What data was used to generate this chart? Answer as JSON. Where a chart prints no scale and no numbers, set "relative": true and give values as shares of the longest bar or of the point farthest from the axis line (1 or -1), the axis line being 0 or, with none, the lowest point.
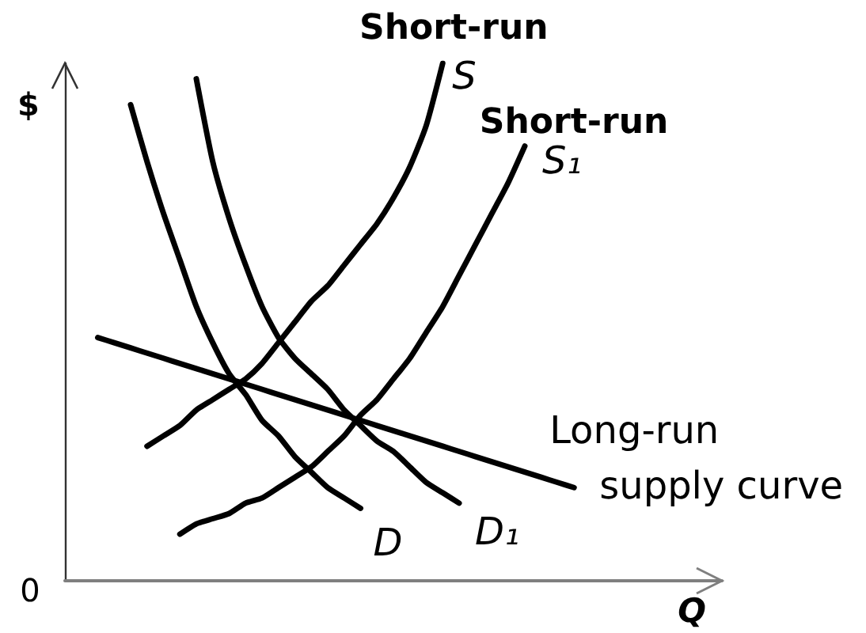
{
  "chart_data": {
    "type": "line",
    "xlabel": "Q",
    "ylabel": "$",
    "relative": true,
    "legend": false,
    "annotations": [
      "0"
    ],
    "categories": [
      null,
      null,
      null,
      null,
      null,
      null,
      null,
      null,
      null,
      null,
      null,
      null,
      null,
      null,
      null,
      null,
      null,
      null,
      null,
      null,
      null,
      null,
      null,
      null,
      null,
      null,
      null,
      null,
      null,
      null,
      null,
      null,
      null,
      null,
      null,
      null,
      null,
      null,
      null,
      null,
      null
    ],
    "series": [
      {
        "name": "D",
        "color": "#000000",
        "values": [
          null,
          null,
          null,
          null,
          0.92,
          0.81,
          0.71,
          0.62,
          0.53,
          0.46,
          0.4,
          0.36,
          0.31,
          0.28,
          0.24,
          0.21,
          0.18,
          0.16,
          0.14,
          null,
          null,
          null,
          null,
          null,
          null,
          null,
          null,
          null,
          null,
          null,
          null,
          null,
          null,
          null,
          null,
          null,
          null,
          null,
          null,
          null,
          null
        ]
      },
      {
        "name": "D₁",
        "color": "#000000",
        "values": [
          null,
          null,
          null,
          null,
          null,
          null,
          null,
          null,
          0.97,
          0.81,
          0.7,
          0.61,
          0.53,
          0.47,
          0.43,
          0.4,
          0.37,
          0.33,
          0.3,
          0.27,
          0.25,
          0.22,
          0.19,
          0.17,
          0.15,
          null,
          null,
          null,
          null,
          null,
          null,
          null,
          null,
          null,
          null,
          null,
          null,
          null,
          null,
          null,
          null
        ]
      },
      {
        "name": "Short-run\nS",
        "color": "#000000",
        "values": [
          null,
          null,
          null,
          null,
          null,
          0.26,
          0.28,
          0.3,
          0.33,
          0.35,
          0.37,
          0.39,
          0.42,
          0.46,
          0.5,
          0.54,
          0.57,
          0.61,
          0.65,
          0.69,
          0.74,
          0.8,
          0.88,
          1,
          null,
          null,
          null,
          null,
          null,
          null,
          null,
          null,
          null,
          null,
          null,
          null,
          null,
          null,
          null,
          null,
          null
        ]
      },
      {
        "name": "Short-run\nS₁",
        "color": "#000000",
        "values": [
          null,
          null,
          null,
          null,
          null,
          null,
          null,
          0.09,
          0.11,
          0.12,
          0.13,
          0.15,
          0.16,
          0.18,
          0.2,
          0.22,
          0.25,
          0.28,
          0.32,
          0.35,
          0.39,
          0.43,
          0.48,
          0.53,
          0.59,
          0.65,
          0.71,
          0.77,
          0.84,
          null,
          null,
          null,
          null,
          null,
          null,
          null,
          null,
          null,
          null,
          null,
          null
        ]
      },
      {
        "name": "Long-run\nsupply curve",
        "color": "#000000",
        "values": [
          null,
          null,
          0.47,
          0.46,
          0.45,
          0.44,
          0.43,
          0.42,
          0.41,
          0.4,
          0.39,
          0.38,
          0.37,
          0.36,
          0.35,
          0.34,
          0.33,
          0.32,
          0.31,
          0.3,
          0.29,
          0.28,
          0.27,
          0.26,
          0.25,
          0.24,
          0.23,
          0.22,
          0.21,
          0.2,
          0.19,
          0.18,
          null,
          null,
          null,
          null,
          null,
          null,
          null,
          null,
          null
        ]
      }
    ]
  }
}
